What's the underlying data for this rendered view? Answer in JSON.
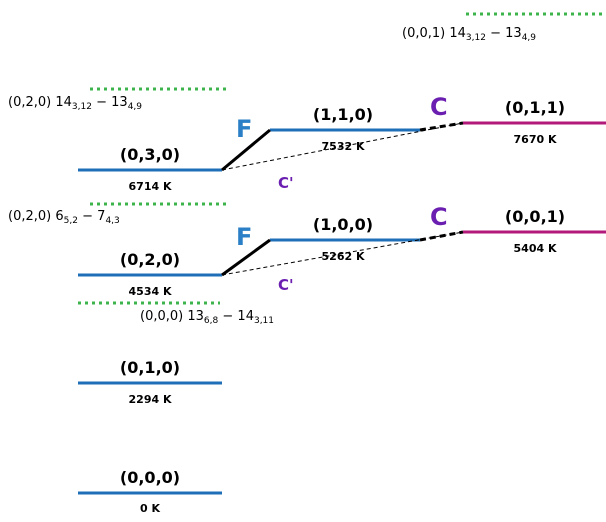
{
  "levels": [
    {
      "id": "000",
      "label": "(0,0,0)",
      "energy": "0 K"
    },
    {
      "id": "010",
      "label": "(0,1,0)",
      "energy": "2294 K"
    },
    {
      "id": "020",
      "label": "(0,2,0)",
      "energy": "4534 K"
    },
    {
      "id": "030",
      "label": "(0,3,0)",
      "energy": "6714 K"
    },
    {
      "id": "100",
      "label": "(1,0,0)",
      "energy": "5262 K"
    },
    {
      "id": "110",
      "label": "(1,1,0)",
      "energy": "7532 K"
    },
    {
      "id": "001",
      "label": "(0,0,1)",
      "energy": "5404 K"
    },
    {
      "id": "011",
      "label": "(0,1,1)",
      "energy": "7670 K"
    }
  ],
  "interactions": {
    "fermi": "F",
    "coriolis": "C",
    "coriolis_prime": "C'"
  },
  "resonances": {
    "r1": {
      "state": "(0,0,1)",
      "a": "14",
      "a_sub": "3,12",
      "b": "13",
      "b_sub": "4,9"
    },
    "r2": {
      "state": "(0,2,0)",
      "a": "14",
      "a_sub": "3,12",
      "b": "13",
      "b_sub": "4,9"
    },
    "r3": {
      "state": "(0,2,0)",
      "a": "6",
      "a_sub": "5,2",
      "b": "7",
      "b_sub": "4,3"
    },
    "r4": {
      "state": "(0,0,0)",
      "a": "13",
      "a_sub": "6,8",
      "b": "14",
      "b_sub": "3,11"
    }
  },
  "colors": {
    "bending": "#1f6fb8",
    "stretch": "#b3197a",
    "fermi_label": "#2a7fc6",
    "coriolis_label": "#6a1fb0",
    "resonance_dots": "#3cb44b",
    "connector": "#000000"
  }
}
